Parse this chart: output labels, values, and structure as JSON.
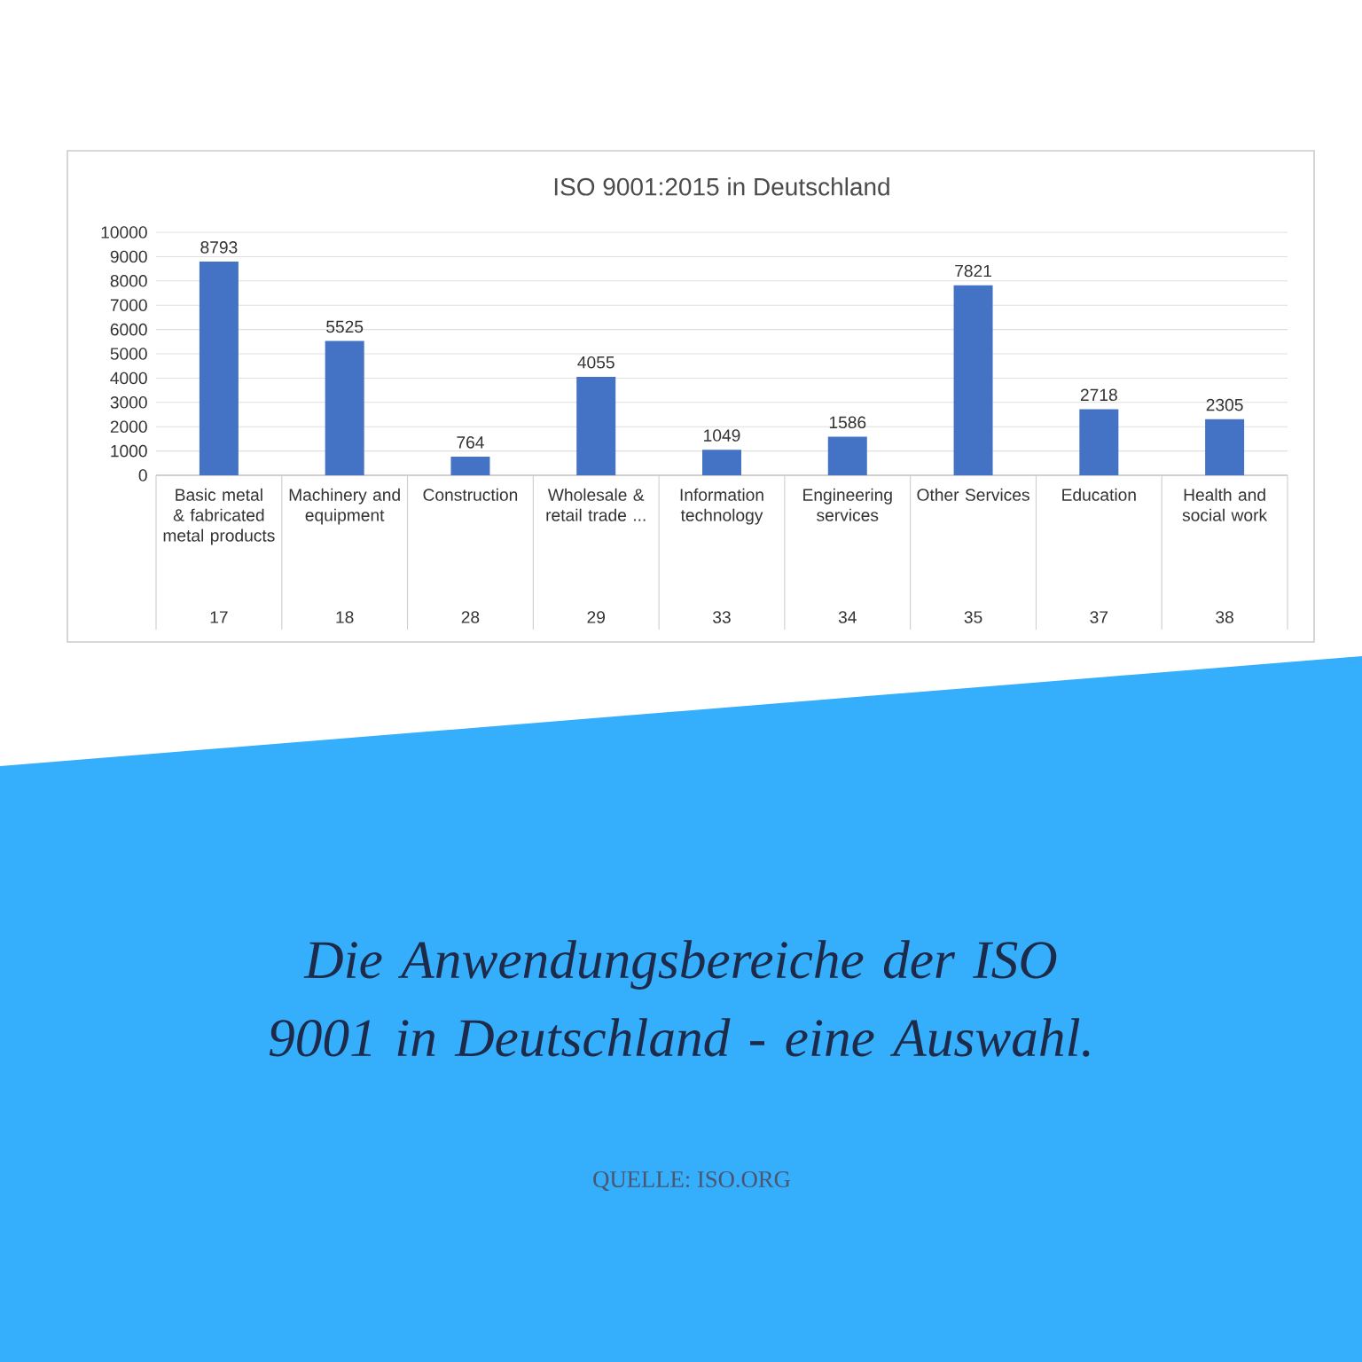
{
  "chart_data": {
    "type": "bar",
    "title": "ISO 9001:2015 in Deutschland",
    "categories": [
      "Basic metal & fabricated metal products",
      "Machinery and equipment",
      "Construction",
      "Wholesale & retail trade ...",
      "Information technology",
      "Engineering services",
      "Other Services",
      "Education",
      "Health and social work"
    ],
    "values": [
      8793,
      5525,
      764,
      4055,
      1049,
      1586,
      7821,
      2718,
      2305
    ],
    "color": "#4472c4",
    "ylim": [
      0,
      10000
    ],
    "yticks": [
      0,
      1000,
      2000,
      3000,
      4000,
      5000,
      6000,
      7000,
      8000,
      9000,
      10000
    ],
    "grid": "y",
    "data_labels": true,
    "annotations": [
      "Die Anwendungsbereiche der ISO 9001 in Deutschland - eine Auswahl.",
      "QUELLE: ISO.ORG",
      "17",
      "18",
      "28",
      "29",
      "33",
      "34",
      "35",
      "37",
      "38"
    ]
  }
}
